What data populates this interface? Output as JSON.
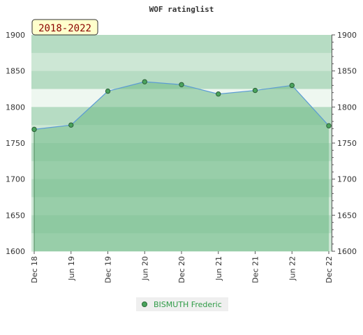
{
  "chart_data": {
    "type": "area",
    "title": "WOF ratinglist",
    "period_label": "2018-2022",
    "xlabel": "",
    "ylabel": "",
    "x_ticks": [
      "Dec 18",
      "Jun 19",
      "Dec 19",
      "Jun 20",
      "Dec 20",
      "Jun 21",
      "Dec 21",
      "Jun 22",
      "Dec 22"
    ],
    "ylim": [
      1600,
      1900
    ],
    "y_ticks": [
      1600,
      1650,
      1700,
      1750,
      1800,
      1850,
      1900
    ],
    "series": [
      {
        "name": "BISMUTH Frederic",
        "values": [
          1769,
          1775,
          1822,
          1835,
          1831,
          1818,
          1823,
          1830,
          1774
        ]
      }
    ],
    "grid": true,
    "legend_position": "bottom-center",
    "colors": {
      "line": "#5b9bd5",
      "fill": "#6dba85",
      "marker": "#4aa35d",
      "legend_text": "#2e9b46",
      "period_bg": "#ffffcc",
      "period_text": "#8b0000"
    }
  }
}
